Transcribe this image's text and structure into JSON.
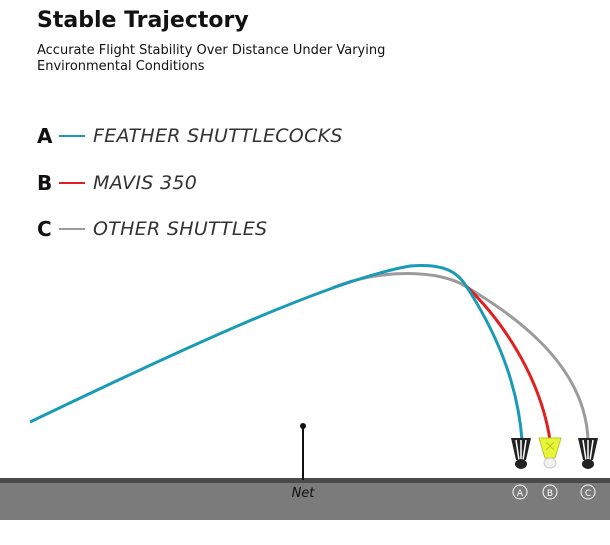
{
  "header": {
    "title": "Stable Trajectory",
    "subtitle": "Accurate Flight Stability Over Distance Under Varying Environmental Conditions"
  },
  "legend": [
    {
      "letter": "A",
      "label": "FEATHER SHUTTLECOCKS",
      "color": "#1a9bb5"
    },
    {
      "letter": "B",
      "label": "MAVIS 350",
      "color": "#e02020"
    },
    {
      "letter": "C",
      "label": "OTHER SHUTTLES",
      "color": "#9b9b9b"
    }
  ],
  "net": {
    "label": "Net"
  },
  "markers": [
    "A",
    "B",
    "C"
  ],
  "colors": {
    "ground": "#7b7b7b",
    "ground_edge": "#4a4a4a",
    "shuttle_yellow": "#e8f53a"
  },
  "icons": [
    "shuttlecock-icon"
  ]
}
